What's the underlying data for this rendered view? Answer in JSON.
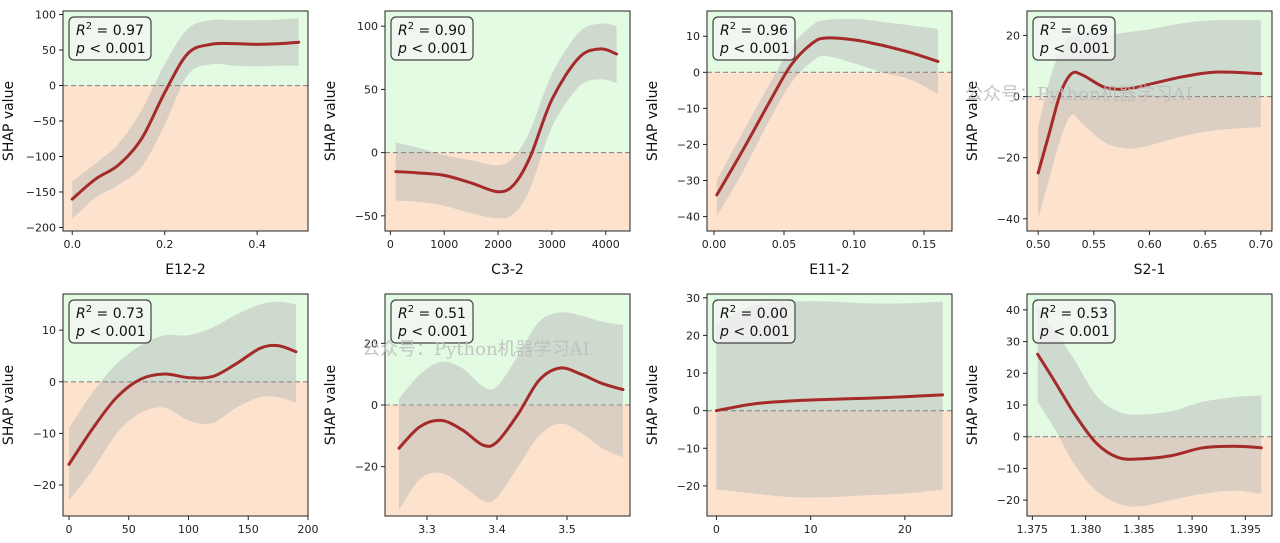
{
  "watermark": "公众号：Python机器学习AI",
  "chart_data": [
    {
      "type": "line",
      "xlabel": "E12-2",
      "ylabel": "SHAP value",
      "r2": "0.97",
      "p": "0.001",
      "xlim": [
        -0.02,
        0.51
      ],
      "ylim": [
        -205,
        105
      ],
      "xticks": [
        0.0,
        0.2,
        0.4
      ],
      "xtick_labels": [
        "0.0",
        "0.2",
        "0.4"
      ],
      "yticks": [
        -200,
        -150,
        -100,
        -50,
        0,
        50,
        100
      ],
      "ytick_labels": [
        "-200",
        "-150",
        "-100",
        "-50",
        "0",
        "50",
        "100"
      ],
      "x": [
        0.0,
        0.05,
        0.1,
        0.15,
        0.2,
        0.25,
        0.3,
        0.35,
        0.4,
        0.45,
        0.49
      ],
      "y": [
        -160,
        -132,
        -112,
        -75,
        -10,
        45,
        58,
        59,
        58,
        59,
        61
      ],
      "upper": [
        -135,
        -110,
        -82,
        -35,
        30,
        80,
        92,
        92,
        92,
        93,
        95
      ],
      "lower": [
        -188,
        -158,
        -140,
        -115,
        -55,
        15,
        30,
        28,
        27,
        28,
        28
      ]
    },
    {
      "type": "line",
      "xlabel": "C3-2",
      "ylabel": "SHAP value",
      "r2": "0.90",
      "p": "0.001",
      "xlim": [
        -100,
        4450
      ],
      "ylim": [
        -62,
        112
      ],
      "xticks": [
        0,
        1000,
        2000,
        3000,
        4000
      ],
      "xtick_labels": [
        "0",
        "1000",
        "2000",
        "3000",
        "4000"
      ],
      "yticks": [
        -50,
        0,
        50,
        100
      ],
      "ytick_labels": [
        "-50",
        "0",
        "50",
        "100"
      ],
      "x": [
        100,
        500,
        1000,
        1500,
        2000,
        2300,
        2600,
        3000,
        3500,
        3900,
        4200
      ],
      "y": [
        -15,
        -16,
        -18,
        -24,
        -31,
        -25,
        -3,
        42,
        75,
        82,
        78
      ],
      "upper": [
        8,
        4,
        -2,
        -6,
        -10,
        -3,
        18,
        62,
        95,
        102,
        100
      ],
      "lower": [
        -38,
        -39,
        -42,
        -48,
        -52,
        -48,
        -28,
        20,
        52,
        58,
        55
      ]
    },
    {
      "type": "line",
      "xlabel": "E11-2",
      "ylabel": "SHAP value",
      "r2": "0.96",
      "p": "0.001",
      "xlim": [
        -0.005,
        0.17
      ],
      "ylim": [
        -44,
        17
      ],
      "xticks": [
        0.0,
        0.05,
        0.1,
        0.15
      ],
      "xtick_labels": [
        "0.00",
        "0.05",
        "0.10",
        "0.15"
      ],
      "yticks": [
        -40,
        -30,
        -20,
        -10,
        0,
        10
      ],
      "ytick_labels": [
        "-40",
        "-30",
        "-20",
        "-10",
        "0",
        "10"
      ],
      "x": [
        0.002,
        0.02,
        0.04,
        0.055,
        0.07,
        0.08,
        0.1,
        0.12,
        0.14,
        0.16
      ],
      "y": [
        -34,
        -22,
        -8,
        2,
        8,
        9.5,
        9,
        7.5,
        5.5,
        3
      ],
      "upper": [
        -30,
        -17,
        -3,
        7,
        13,
        14.5,
        14.8,
        14,
        13,
        12
      ],
      "lower": [
        -40,
        -28,
        -13,
        -3,
        3,
        4.5,
        2.5,
        0,
        -2,
        -6
      ]
    },
    {
      "type": "line",
      "xlabel": "S2-1",
      "ylabel": "SHAP value",
      "r2": "0.69",
      "p": "0.001",
      "xlim": [
        0.49,
        0.71
      ],
      "ylim": [
        -44,
        28
      ],
      "xticks": [
        0.5,
        0.55,
        0.6,
        0.65,
        0.7
      ],
      "xtick_labels": [
        "0.50",
        "0.55",
        "0.60",
        "0.65",
        "0.70"
      ],
      "yticks": [
        -40,
        -20,
        0,
        20
      ],
      "ytick_labels": [
        "-40",
        "-20",
        "0",
        "20"
      ],
      "x": [
        0.5,
        0.51,
        0.52,
        0.53,
        0.54,
        0.56,
        0.58,
        0.6,
        0.63,
        0.66,
        0.7
      ],
      "y": [
        -25,
        -12,
        1,
        7.5,
        7,
        3,
        2.5,
        4,
        6.5,
        8,
        7.5
      ],
      "upper": [
        -10,
        5,
        15,
        20,
        21,
        20,
        21,
        22,
        24,
        25,
        25
      ],
      "lower": [
        -40,
        -27,
        -14,
        -6,
        -9,
        -15,
        -17,
        -16,
        -13,
        -11,
        -10
      ]
    },
    {
      "type": "line",
      "xlabel": "",
      "ylabel": "SHAP value",
      "r2": "0.73",
      "p": "0.001",
      "xlim": [
        -5,
        200
      ],
      "ylim": [
        -26,
        17
      ],
      "xticks": [
        0,
        50,
        100,
        150,
        200
      ],
      "xtick_labels": [
        "0",
        "50",
        "100",
        "150",
        "200"
      ],
      "yticks": [
        -20,
        -10,
        0,
        10
      ],
      "ytick_labels": [
        "-20",
        "-10",
        "0",
        "10"
      ],
      "x": [
        0,
        20,
        40,
        60,
        80,
        100,
        120,
        140,
        160,
        175,
        190
      ],
      "y": [
        -16,
        -9,
        -3,
        0.5,
        1.5,
        0.8,
        1,
        3.5,
        6.5,
        7,
        5.8
      ],
      "upper": [
        -9,
        -2,
        3.5,
        7,
        9,
        9,
        10.5,
        13,
        15,
        15.5,
        15
      ],
      "lower": [
        -23,
        -17,
        -10,
        -6,
        -5,
        -7.5,
        -8,
        -5,
        -3,
        -3,
        -4
      ]
    },
    {
      "type": "line",
      "xlabel": "",
      "ylabel": "SHAP value",
      "r2": "0.51",
      "p": "0.001",
      "xlim": [
        3.24,
        3.59
      ],
      "ylim": [
        -36,
        36
      ],
      "xticks": [
        3.3,
        3.4,
        3.5
      ],
      "xtick_labels": [
        "3.3",
        "3.4",
        "3.5"
      ],
      "yticks": [
        -20,
        0,
        20
      ],
      "ytick_labels": [
        "-20",
        "0",
        "20"
      ],
      "x": [
        3.26,
        3.29,
        3.32,
        3.35,
        3.38,
        3.4,
        3.43,
        3.46,
        3.49,
        3.52,
        3.55,
        3.58
      ],
      "y": [
        -14,
        -7,
        -5,
        -8,
        -13,
        -12,
        -3,
        8,
        12,
        10,
        7,
        5
      ],
      "upper": [
        2,
        10,
        14,
        12,
        6,
        6,
        16,
        27,
        30,
        29,
        27,
        26
      ],
      "lower": [
        -34,
        -24,
        -22,
        -26,
        -31,
        -30,
        -20,
        -10,
        -6,
        -9,
        -14,
        -17
      ]
    },
    {
      "type": "line",
      "xlabel": "",
      "ylabel": "SHAP value",
      "r2": "0.00",
      "p": "0.001",
      "xlim": [
        -1,
        25
      ],
      "ylim": [
        -28,
        31
      ],
      "xticks": [
        0,
        10,
        20
      ],
      "xtick_labels": [
        "0",
        "10",
        "20"
      ],
      "yticks": [
        -20,
        -10,
        0,
        10,
        20,
        30
      ],
      "ytick_labels": [
        "-20",
        "-10",
        "0",
        "10",
        "20",
        "30"
      ],
      "x": [
        0,
        4,
        8,
        12,
        16,
        20,
        24
      ],
      "y": [
        0,
        1.8,
        2.6,
        3,
        3.3,
        3.7,
        4.2
      ],
      "upper": [
        23,
        28,
        29,
        29,
        28.5,
        28.5,
        29
      ],
      "lower": [
        -21,
        -22,
        -23,
        -23,
        -22.5,
        -22,
        -21
      ]
    },
    {
      "type": "line",
      "xlabel": "",
      "ylabel": "SHAP value",
      "r2": "0.53",
      "p": "0.001",
      "xlim": [
        1.3745,
        1.3975
      ],
      "ylim": [
        -25,
        45
      ],
      "xticks": [
        1.375,
        1.38,
        1.385,
        1.39,
        1.395
      ],
      "xtick_labels": [
        "1.375",
        "1.380",
        "1.385",
        "1.390",
        "1.395"
      ],
      "yticks": [
        -20,
        -10,
        0,
        10,
        20,
        30,
        40
      ],
      "ytick_labels": [
        "-20",
        "-10",
        "0",
        "10",
        "20",
        "30",
        "40"
      ],
      "x": [
        1.3755,
        1.377,
        1.379,
        1.381,
        1.383,
        1.385,
        1.388,
        1.391,
        1.394,
        1.3965
      ],
      "y": [
        26,
        18,
        7,
        -2,
        -6.5,
        -7,
        -6,
        -3.5,
        -3,
        -3.5
      ],
      "upper": [
        41,
        34,
        24,
        13,
        8,
        7,
        8,
        11,
        12.5,
        13
      ],
      "lower": [
        11,
        3,
        -9,
        -17,
        -21,
        -22,
        -20,
        -18,
        -17,
        -18
      ]
    }
  ]
}
